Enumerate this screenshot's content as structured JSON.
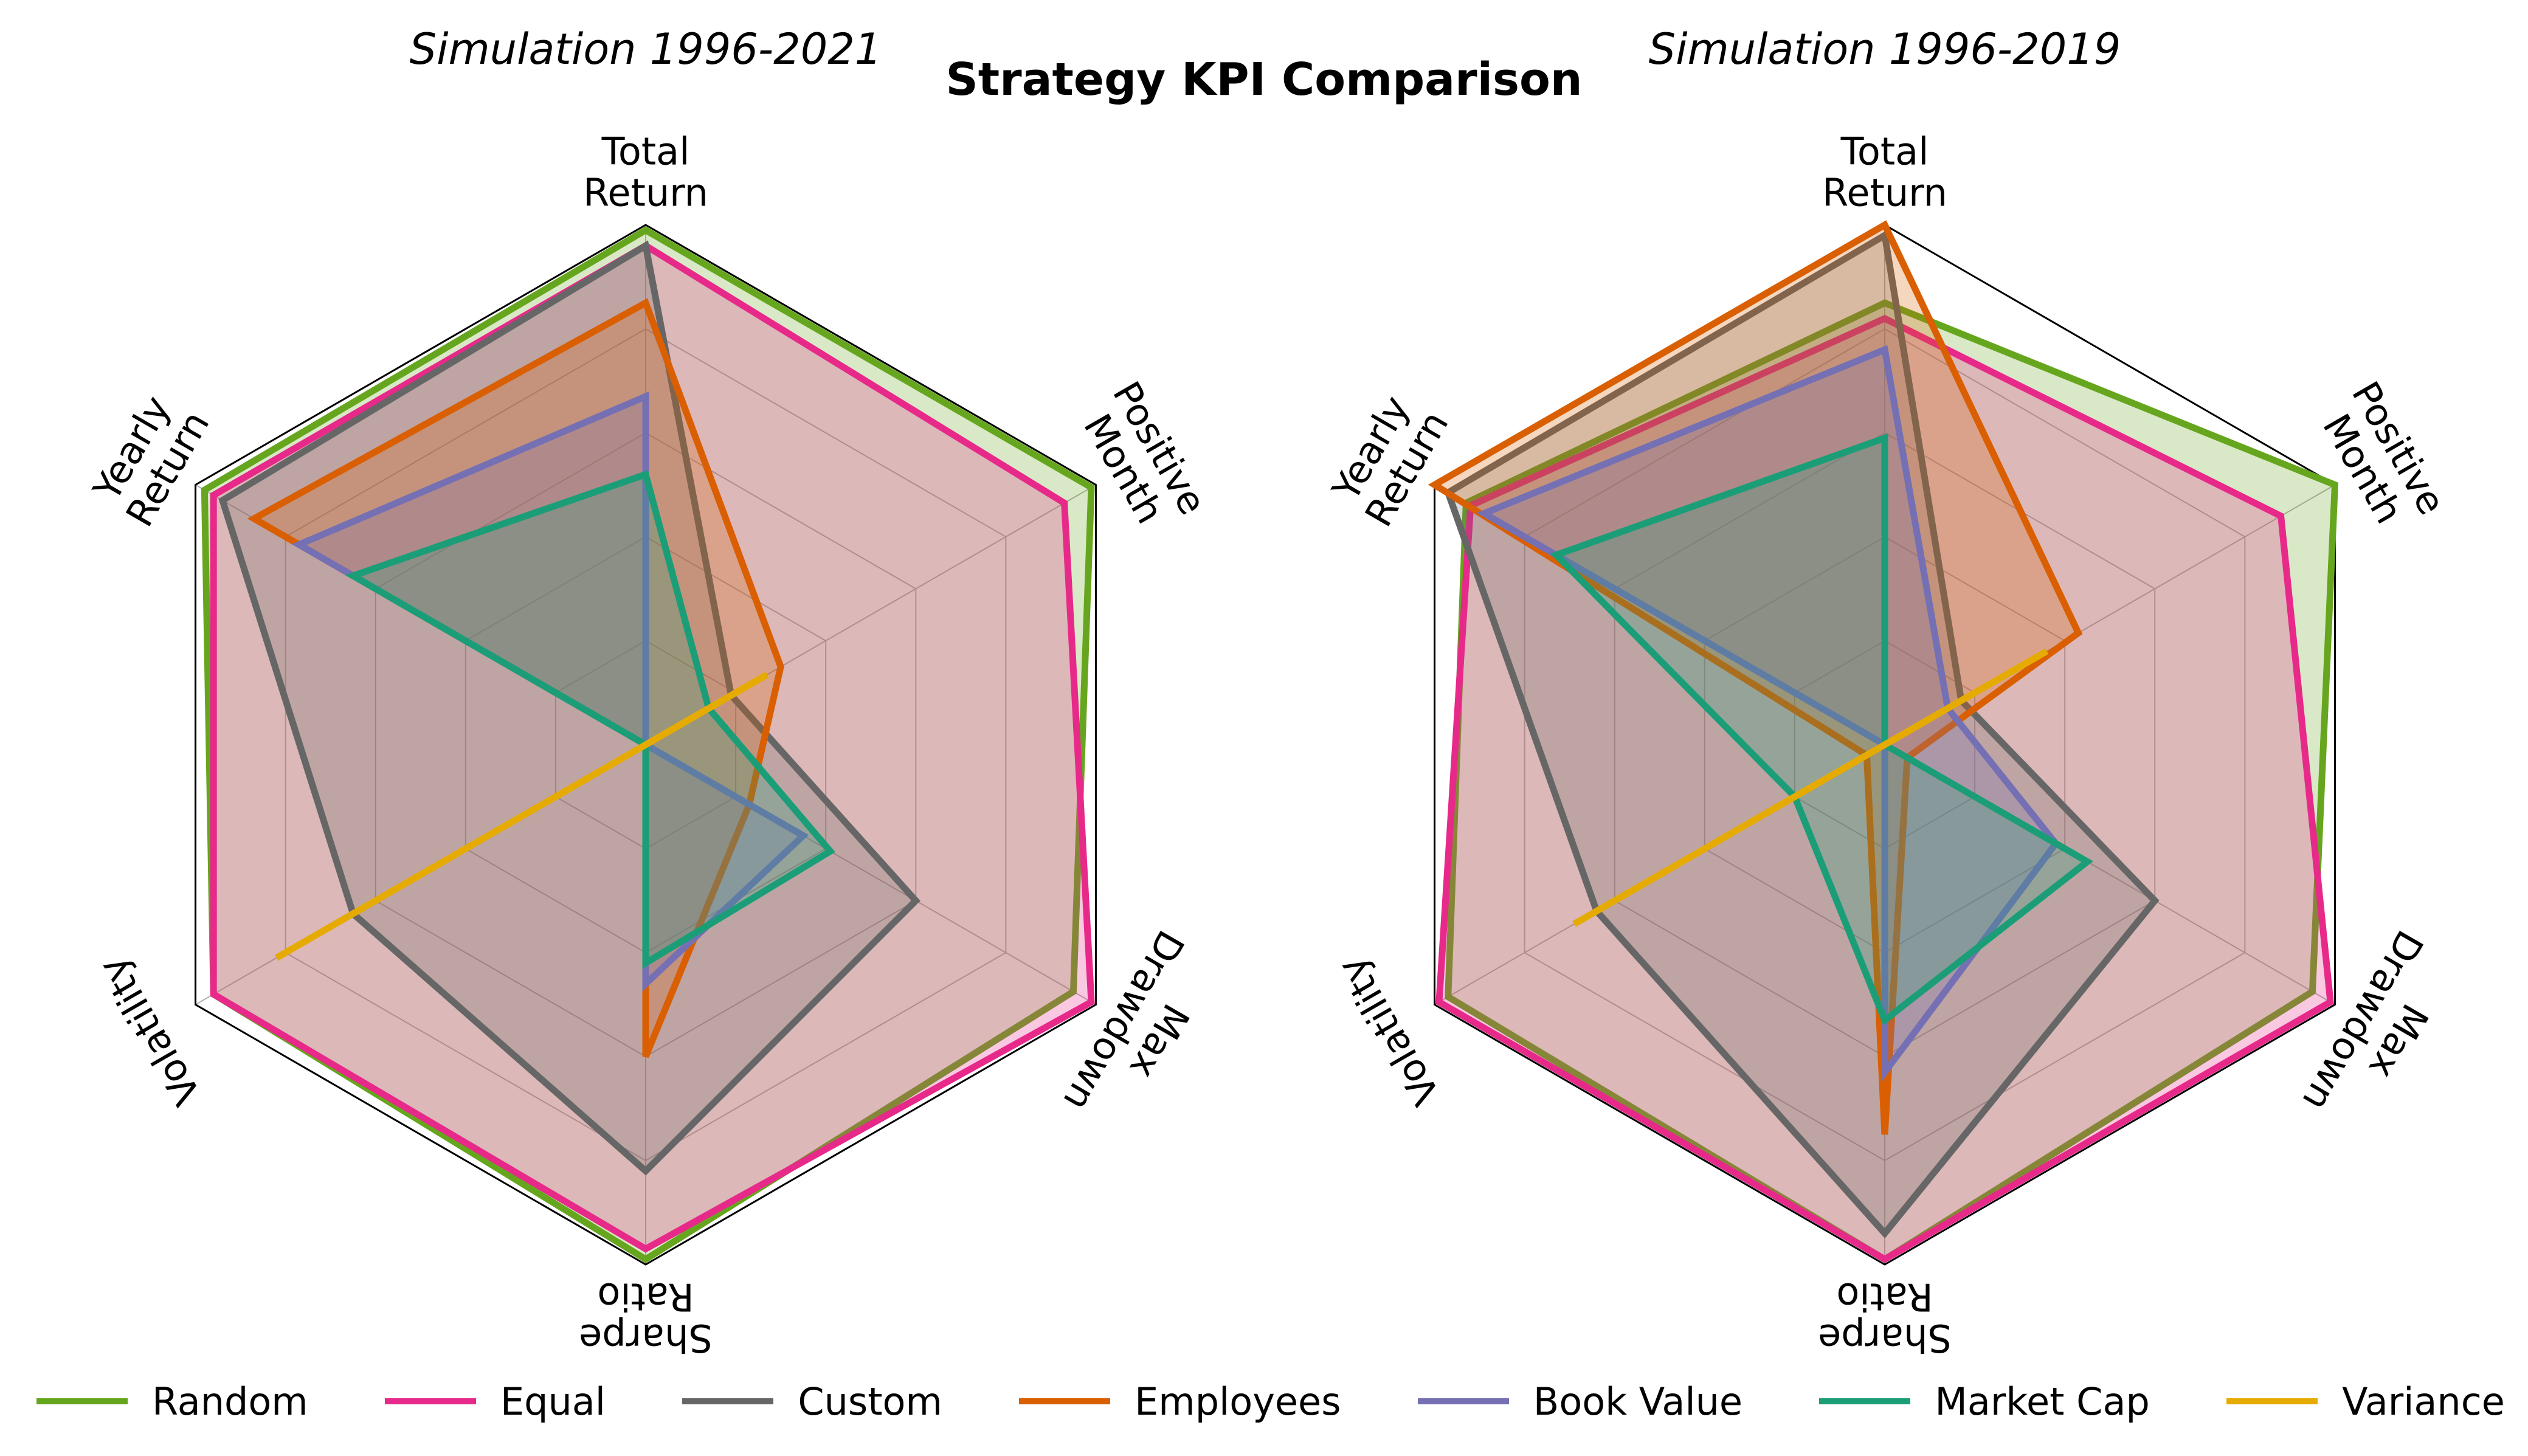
{
  "title": "Strategy KPI Comparison",
  "axes": [
    "Total Return",
    "Positive Month",
    "Max Drawdown",
    "Sharpe Ratio",
    "Volatility",
    "Yearly Return"
  ],
  "legend": [
    {
      "name": "Random",
      "color": "#66a61e"
    },
    {
      "name": "Equal",
      "color": "#e7298a"
    },
    {
      "name": "Custom",
      "color": "#666666"
    },
    {
      "name": "Employees",
      "color": "#d95f02"
    },
    {
      "name": "Book Value",
      "color": "#7570b3"
    },
    {
      "name": "Market Cap",
      "color": "#1b9e77"
    },
    {
      "name": "Variance",
      "color": "#e6ab02"
    }
  ],
  "chart_data": [
    {
      "type": "radar",
      "title": "Simulation 1996-2021",
      "axes": [
        "Total Return",
        "Positive Month",
        "Max Drawdown",
        "Sharpe Ratio",
        "Volatility",
        "Yearly Return"
      ],
      "rmax": 1.0,
      "grid": true,
      "series": [
        {
          "name": "Random",
          "color": "#66a61e",
          "fill": true,
          "values": [
            0.99,
            0.99,
            0.95,
            0.99,
            0.96,
            0.98
          ]
        },
        {
          "name": "Equal",
          "color": "#e7298a",
          "fill": true,
          "values": [
            0.96,
            0.93,
            0.99,
            0.97,
            0.96,
            0.96
          ]
        },
        {
          "name": "Custom",
          "color": "#666666",
          "fill": true,
          "values": [
            0.96,
            0.19,
            0.6,
            0.82,
            0.65,
            0.94
          ]
        },
        {
          "name": "Employees",
          "color": "#d95f02",
          "fill": true,
          "values": [
            0.85,
            0.3,
            0.23,
            0.6,
            0.0,
            0.87
          ]
        },
        {
          "name": "Book Value",
          "color": "#7570b3",
          "fill": true,
          "values": [
            0.67,
            0.0,
            0.35,
            0.46,
            0.0,
            0.77
          ]
        },
        {
          "name": "Market Cap",
          "color": "#1b9e77",
          "fill": true,
          "values": [
            0.52,
            0.14,
            0.41,
            0.42,
            0.0,
            0.65
          ]
        },
        {
          "name": "Variance",
          "color": "#e6ab02",
          "fill": false,
          "values": [
            0.0,
            0.27,
            0.0,
            0.0,
            0.82,
            0.0
          ]
        }
      ]
    },
    {
      "type": "radar",
      "title": "Simulation 1996-2019",
      "axes": [
        "Total Return",
        "Positive Month",
        "Max Drawdown",
        "Sharpe Ratio",
        "Volatility",
        "Yearly Return"
      ],
      "rmax": 1.0,
      "grid": true,
      "series": [
        {
          "name": "Random",
          "color": "#66a61e",
          "fill": true,
          "values": [
            0.85,
            1.0,
            0.95,
            0.99,
            0.97,
            0.93
          ]
        },
        {
          "name": "Equal",
          "color": "#e7298a",
          "fill": true,
          "values": [
            0.82,
            0.88,
            0.99,
            0.99,
            0.99,
            0.92
          ]
        },
        {
          "name": "Custom",
          "color": "#666666",
          "fill": true,
          "values": [
            0.98,
            0.17,
            0.6,
            0.94,
            0.64,
            0.97
          ]
        },
        {
          "name": "Employees",
          "color": "#d95f02",
          "fill": true,
          "values": [
            1.0,
            0.43,
            0.05,
            0.75,
            0.04,
            1.0
          ]
        },
        {
          "name": "Book Value",
          "color": "#7570b3",
          "fill": true,
          "values": [
            0.76,
            0.14,
            0.38,
            0.63,
            0.0,
            0.89
          ]
        },
        {
          "name": "Market Cap",
          "color": "#1b9e77",
          "fill": true,
          "values": [
            0.59,
            0.0,
            0.45,
            0.53,
            0.2,
            0.73
          ]
        },
        {
          "name": "Variance",
          "color": "#e6ab02",
          "fill": false,
          "values": [
            0.0,
            0.36,
            0.0,
            0.0,
            0.69,
            0.0
          ]
        }
      ]
    }
  ]
}
